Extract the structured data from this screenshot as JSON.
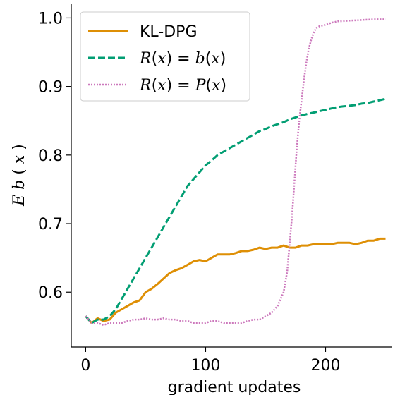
{
  "chart_data": {
    "type": "line",
    "xlabel": "gradient updates",
    "ylabel": "E b(x)",
    "xlim": [
      -12,
      255
    ],
    "ylim": [
      0.52,
      1.02
    ],
    "xticks": [
      0,
      100,
      200
    ],
    "xtick_labels": [
      "0",
      "100",
      "200"
    ],
    "yticks": [
      0.6,
      0.7,
      0.8,
      0.9,
      1.0
    ],
    "ytick_labels": [
      "0.6",
      "0.7",
      "0.8",
      "0.9",
      "1.0"
    ],
    "grid": false,
    "legend_position": "top-left",
    "series": [
      {
        "name": "KL-DPG",
        "color": "#de8f05",
        "dash": "solid",
        "x": [
          0,
          5,
          10,
          15,
          20,
          25,
          30,
          35,
          40,
          45,
          50,
          55,
          60,
          65,
          70,
          75,
          80,
          85,
          90,
          95,
          100,
          105,
          110,
          115,
          120,
          125,
          130,
          135,
          140,
          145,
          150,
          155,
          160,
          165,
          170,
          175,
          180,
          185,
          190,
          195,
          200,
          205,
          210,
          215,
          220,
          225,
          230,
          235,
          240,
          245,
          250
        ],
        "y": [
          0.565,
          0.555,
          0.562,
          0.558,
          0.56,
          0.57,
          0.575,
          0.58,
          0.585,
          0.588,
          0.6,
          0.605,
          0.612,
          0.62,
          0.628,
          0.632,
          0.635,
          0.64,
          0.645,
          0.647,
          0.645,
          0.65,
          0.655,
          0.655,
          0.655,
          0.657,
          0.66,
          0.66,
          0.662,
          0.665,
          0.663,
          0.665,
          0.665,
          0.668,
          0.665,
          0.665,
          0.668,
          0.668,
          0.67,
          0.67,
          0.67,
          0.67,
          0.672,
          0.672,
          0.672,
          0.67,
          0.672,
          0.675,
          0.675,
          0.678,
          0.678
        ]
      },
      {
        "name": "R(x) = b(x)",
        "color": "#029e73",
        "dash": "dashed",
        "x": [
          0,
          5,
          10,
          15,
          20,
          25,
          30,
          35,
          40,
          45,
          50,
          55,
          60,
          65,
          70,
          75,
          80,
          85,
          90,
          95,
          100,
          105,
          110,
          115,
          120,
          125,
          130,
          135,
          140,
          145,
          150,
          155,
          160,
          165,
          170,
          175,
          180,
          185,
          190,
          195,
          200,
          205,
          210,
          215,
          220,
          225,
          230,
          235,
          240,
          245,
          250
        ],
        "y": [
          0.565,
          0.555,
          0.56,
          0.56,
          0.565,
          0.575,
          0.59,
          0.605,
          0.62,
          0.635,
          0.65,
          0.665,
          0.68,
          0.695,
          0.71,
          0.725,
          0.74,
          0.755,
          0.765,
          0.775,
          0.785,
          0.792,
          0.8,
          0.805,
          0.81,
          0.815,
          0.82,
          0.825,
          0.83,
          0.835,
          0.838,
          0.842,
          0.845,
          0.848,
          0.852,
          0.855,
          0.858,
          0.86,
          0.862,
          0.864,
          0.866,
          0.868,
          0.87,
          0.871,
          0.872,
          0.873,
          0.875,
          0.876,
          0.878,
          0.88,
          0.882
        ]
      },
      {
        "name": "R(x) = P(x)",
        "color": "#cc78bc",
        "dash": "dotted",
        "x": [
          0,
          5,
          10,
          15,
          20,
          25,
          30,
          35,
          40,
          45,
          50,
          55,
          60,
          65,
          70,
          75,
          80,
          85,
          90,
          95,
          100,
          105,
          110,
          115,
          120,
          125,
          130,
          135,
          140,
          145,
          150,
          155,
          160,
          165,
          168,
          170,
          172,
          174,
          176,
          178,
          180,
          182,
          184,
          186,
          188,
          190,
          192,
          195,
          200,
          205,
          210,
          220,
          230,
          240,
          250
        ],
        "y": [
          0.565,
          0.555,
          0.555,
          0.552,
          0.555,
          0.555,
          0.555,
          0.558,
          0.56,
          0.56,
          0.562,
          0.56,
          0.56,
          0.562,
          0.56,
          0.56,
          0.558,
          0.558,
          0.555,
          0.555,
          0.555,
          0.558,
          0.558,
          0.555,
          0.555,
          0.555,
          0.555,
          0.558,
          0.56,
          0.56,
          0.565,
          0.57,
          0.58,
          0.6,
          0.63,
          0.67,
          0.71,
          0.76,
          0.81,
          0.85,
          0.88,
          0.91,
          0.935,
          0.955,
          0.968,
          0.978,
          0.985,
          0.988,
          0.99,
          0.993,
          0.995,
          0.996,
          0.997,
          0.998,
          0.998
        ]
      }
    ],
    "legend": [
      {
        "label": "KL-DPG",
        "math": false
      },
      {
        "label": "R(x) = b(x)",
        "math": true,
        "parts": [
          "R",
          "(",
          "x",
          ") = ",
          "b",
          "(",
          "x",
          ")"
        ]
      },
      {
        "label": "R(x) = P(x)",
        "math": true,
        "parts": [
          "R",
          "(",
          "x",
          ") = ",
          "P",
          "(",
          "x",
          ")"
        ]
      }
    ]
  }
}
